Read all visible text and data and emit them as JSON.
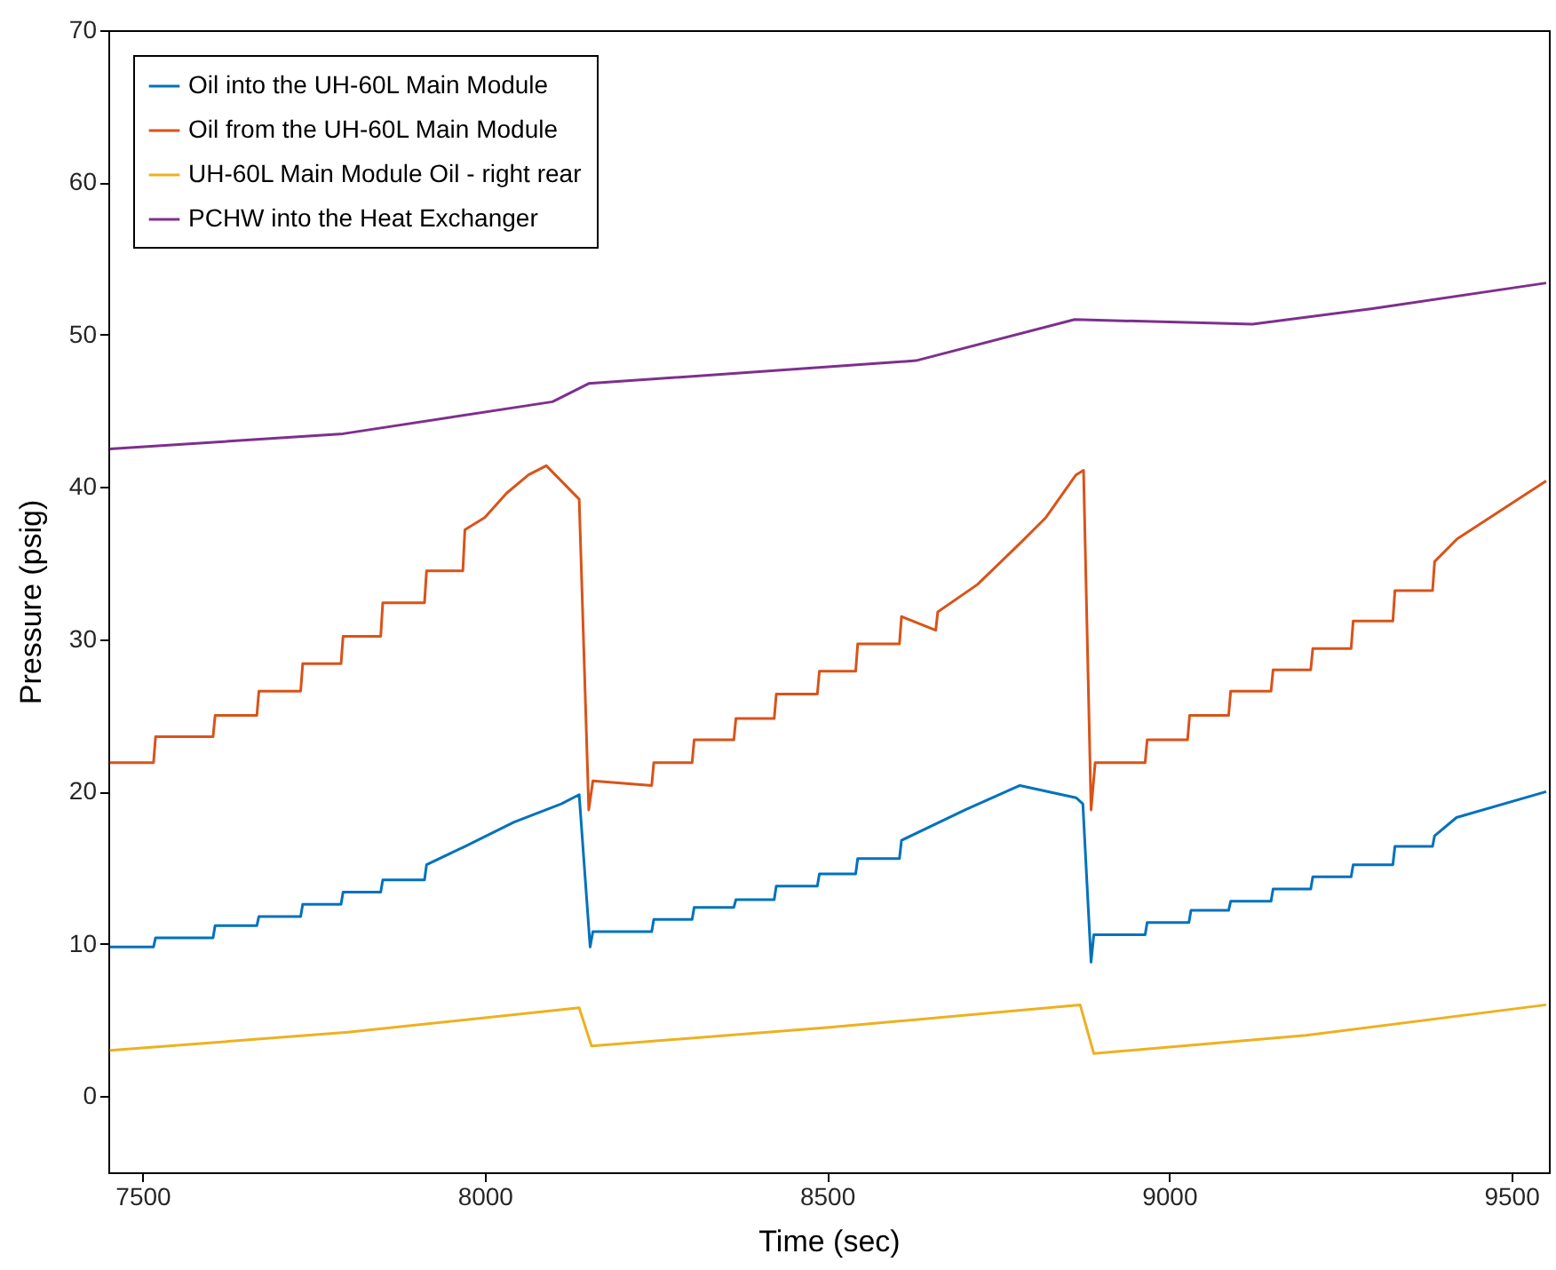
{
  "chart_data": {
    "type": "line",
    "xlabel": "Time (sec)",
    "ylabel": "Pressure (psig)",
    "xlim": [
      7450,
      9555
    ],
    "xticks": [
      7500,
      8000,
      8500,
      9000,
      9500
    ],
    "ylim": [
      -5,
      70
    ],
    "yticks": [
      0,
      10,
      20,
      30,
      40,
      50,
      60,
      70
    ],
    "grid": false,
    "legend": "top left",
    "line_style": "solid",
    "marker": "none",
    "series": [
      {
        "name": "Oil into the UH-60L Main Module",
        "color": "#0072bd",
        "x": [
          7452,
          7516,
          7519,
          7603,
          7606,
          7667,
          7670,
          7731,
          7734,
          7790,
          7793,
          7848,
          7851,
          7912,
          7915,
          7971,
          8043,
          8112,
          8138,
          8154,
          8158,
          8244,
          8247,
          8303,
          8306,
          8364,
          8367,
          8423,
          8426,
          8486,
          8489,
          8542,
          8545,
          8606,
          8609,
          8702,
          8782,
          8864,
          8874,
          8886,
          8890,
          8965,
          8968,
          9029,
          9032,
          9087,
          9090,
          9149,
          9152,
          9207,
          9210,
          9266,
          9269,
          9327,
          9330,
          9385,
          9388,
          9420,
          9551
        ],
        "values": [
          9.8,
          9.8,
          10.4,
          10.4,
          11.2,
          11.2,
          11.8,
          11.8,
          12.6,
          12.6,
          13.4,
          13.4,
          14.2,
          14.2,
          15.2,
          16.4,
          18,
          19.2,
          19.8,
          9.8,
          10.8,
          10.8,
          11.6,
          11.6,
          12.4,
          12.4,
          12.9,
          12.9,
          13.8,
          13.8,
          14.6,
          14.6,
          15.6,
          15.6,
          16.8,
          18.8,
          20.4,
          19.6,
          19.2,
          8.8,
          10.6,
          10.6,
          11.4,
          11.4,
          12.2,
          12.2,
          12.8,
          12.8,
          13.6,
          13.6,
          14.4,
          14.4,
          15.2,
          15.2,
          16.4,
          16.4,
          17.1,
          18.3,
          20
        ]
      },
      {
        "name": "Oil from the UH-60L Main Module",
        "color": "#d95319",
        "x": [
          7452,
          7516,
          7519,
          7603,
          7606,
          7667,
          7670,
          7731,
          7734,
          7790,
          7793,
          7848,
          7851,
          7912,
          7915,
          7968,
          7971,
          8000,
          8032,
          8064,
          8090,
          8138,
          8152,
          8158,
          8244,
          8247,
          8303,
          8306,
          8364,
          8367,
          8423,
          8426,
          8486,
          8489,
          8542,
          8545,
          8606,
          8609,
          8659,
          8662,
          8720,
          8782,
          8820,
          8864,
          8875,
          8886,
          8892,
          8965,
          8968,
          9027,
          9030,
          9087,
          9090,
          9149,
          9152,
          9207,
          9210,
          9266,
          9269,
          9327,
          9330,
          9385,
          9388,
          9421,
          9551
        ],
        "values": [
          21.9,
          21.9,
          23.6,
          23.6,
          25,
          25,
          26.6,
          26.6,
          28.4,
          28.4,
          30.2,
          30.2,
          32.4,
          32.4,
          34.5,
          34.5,
          37.2,
          38,
          39.6,
          40.8,
          41.4,
          39.2,
          18.8,
          20.7,
          20.4,
          21.9,
          21.9,
          23.4,
          23.4,
          24.8,
          24.8,
          26.4,
          26.4,
          27.9,
          27.9,
          29.7,
          29.7,
          31.5,
          30.6,
          31.8,
          33.6,
          36.3,
          38,
          40.8,
          41.1,
          18.8,
          21.9,
          21.9,
          23.4,
          23.4,
          25,
          25,
          26.6,
          26.6,
          28,
          28,
          29.4,
          29.4,
          31.2,
          31.2,
          33.2,
          33.2,
          35.1,
          36.6,
          40.4
        ]
      },
      {
        "name": "UH-60L Main Module Oil - right rear",
        "color": "#edb120",
        "x": [
          7452,
          7800,
          8138,
          8156,
          8500,
          8870,
          8890,
          9200,
          9551
        ],
        "values": [
          3,
          4.2,
          5.8,
          3.3,
          4.5,
          6,
          2.8,
          4,
          6
        ]
      },
      {
        "name": "PCHW into the Heat Exchanger",
        "color": "#7e2f8e",
        "x": [
          7452,
          7793,
          8099,
          8152,
          8630,
          8862,
          9122,
          9295,
          9551
        ],
        "values": [
          42.5,
          43.5,
          45.6,
          46.8,
          48.3,
          51,
          50.7,
          51.7,
          53.4
        ]
      }
    ]
  }
}
